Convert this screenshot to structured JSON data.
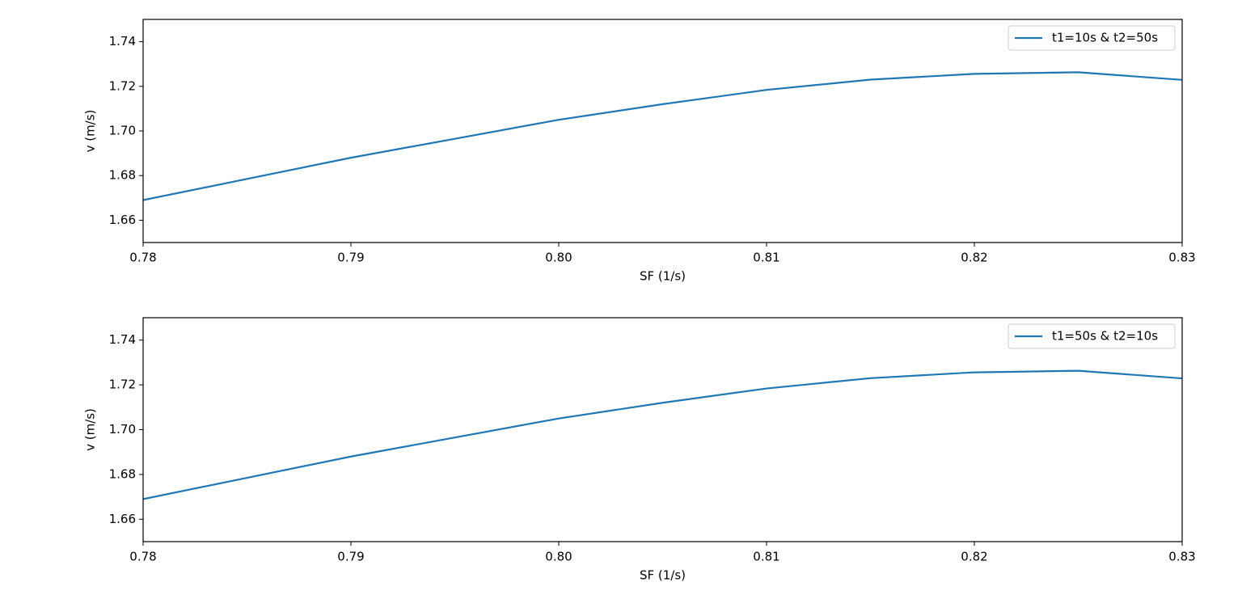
{
  "chart_data": [
    {
      "type": "line",
      "xlabel": "SF (1/s)",
      "ylabel": "v (m/s)",
      "x": [
        0.78,
        0.785,
        0.79,
        0.795,
        0.8,
        0.805,
        0.81,
        0.815,
        0.82,
        0.825,
        0.83
      ],
      "series": [
        {
          "name": "t1=10s & t2=50s",
          "color": "#1f77b4",
          "values": [
            1.669,
            1.6785,
            1.688,
            1.6965,
            1.705,
            1.712,
            1.7184,
            1.723,
            1.7256,
            1.7263,
            1.7229
          ]
        }
      ],
      "xlim": [
        0.78,
        0.83
      ],
      "xticks": [
        0.78,
        0.79,
        {
          "value": 0.8,
          "label": "0.80"
        },
        0.81,
        0.82,
        0.83
      ],
      "ylim": [
        1.65,
        1.75
      ],
      "yticks": [
        1.66,
        1.68,
        {
          "value": 1.7,
          "label": "1.70"
        },
        1.72,
        1.74
      ],
      "legend": "upper right"
    },
    {
      "type": "line",
      "xlabel": "SF (1/s)",
      "ylabel": "v (m/s)",
      "x": [
        0.78,
        0.785,
        0.79,
        0.795,
        0.8,
        0.805,
        0.81,
        0.815,
        0.82,
        0.825,
        0.83
      ],
      "series": [
        {
          "name": "t1=50s & t2=10s",
          "color": "#1f77b4",
          "values": [
            1.669,
            1.6785,
            1.688,
            1.6965,
            1.705,
            1.712,
            1.7184,
            1.723,
            1.7256,
            1.7263,
            1.7229
          ]
        }
      ],
      "xlim": [
        0.78,
        0.83
      ],
      "xticks": [
        0.78,
        0.79,
        {
          "value": 0.8,
          "label": "0.80"
        },
        0.81,
        0.82,
        0.83
      ],
      "ylim": [
        1.65,
        1.75
      ],
      "yticks": [
        1.66,
        1.68,
        {
          "value": 1.7,
          "label": "1.70"
        },
        1.72,
        1.74
      ],
      "legend": "upper right"
    }
  ]
}
